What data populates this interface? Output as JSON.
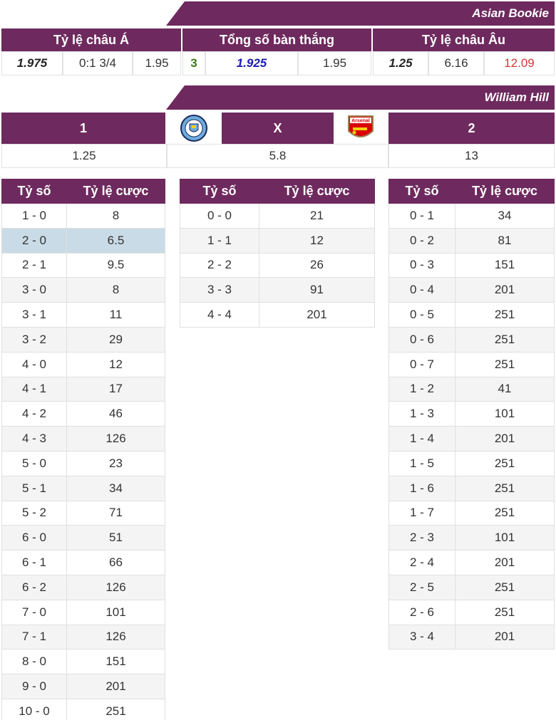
{
  "asian_bookie": {
    "banner": "Asian Bookie",
    "headers": [
      "Tỷ lệ châu Á",
      "Tổng số bàn thắng",
      "Tỷ lệ châu Âu"
    ],
    "asian": [
      "1.975",
      "0:1 3/4",
      "1.95"
    ],
    "total": [
      "3",
      "1.925",
      "1.95"
    ],
    "europe": [
      "1.25",
      "6.16",
      "12.09"
    ]
  },
  "william_hill": {
    "banner": "William Hill",
    "home_label": "1",
    "draw_label": "X",
    "away_label": "2",
    "home_odd": "1.25",
    "draw_odd": "5.8",
    "away_odd": "13",
    "home_logo": "man-city-crest-icon",
    "away_logo": "arsenal-crest-icon",
    "away_logo_text": "Arsenal"
  },
  "score_headers": {
    "score": "Tỷ số",
    "odds": "Tỷ lệ cược"
  },
  "home_scores": [
    [
      "1 - 0",
      "8"
    ],
    [
      "2 - 0",
      "6.5"
    ],
    [
      "2 - 1",
      "9.5"
    ],
    [
      "3 - 0",
      "8"
    ],
    [
      "3 - 1",
      "11"
    ],
    [
      "3 - 2",
      "29"
    ],
    [
      "4 - 0",
      "12"
    ],
    [
      "4 - 1",
      "17"
    ],
    [
      "4 - 2",
      "46"
    ],
    [
      "4 - 3",
      "126"
    ],
    [
      "5 - 0",
      "23"
    ],
    [
      "5 - 1",
      "34"
    ],
    [
      "5 - 2",
      "71"
    ],
    [
      "6 - 0",
      "51"
    ],
    [
      "6 - 1",
      "66"
    ],
    [
      "6 - 2",
      "126"
    ],
    [
      "7 - 0",
      "101"
    ],
    [
      "7 - 1",
      "126"
    ],
    [
      "8 - 0",
      "151"
    ],
    [
      "9 - 0",
      "201"
    ],
    [
      "10 - 0",
      "251"
    ]
  ],
  "draw_scores": [
    [
      "0 - 0",
      "21"
    ],
    [
      "1 - 1",
      "12"
    ],
    [
      "2 - 2",
      "26"
    ],
    [
      "3 - 3",
      "91"
    ],
    [
      "4 - 4",
      "201"
    ]
  ],
  "away_scores": [
    [
      "0 - 1",
      "34"
    ],
    [
      "0 - 2",
      "81"
    ],
    [
      "0 - 3",
      "151"
    ],
    [
      "0 - 4",
      "201"
    ],
    [
      "0 - 5",
      "251"
    ],
    [
      "0 - 6",
      "251"
    ],
    [
      "0 - 7",
      "251"
    ],
    [
      "1 - 2",
      "41"
    ],
    [
      "1 - 3",
      "101"
    ],
    [
      "1 - 4",
      "201"
    ],
    [
      "1 - 5",
      "251"
    ],
    [
      "1 - 6",
      "251"
    ],
    [
      "1 - 7",
      "251"
    ],
    [
      "2 - 3",
      "101"
    ],
    [
      "2 - 4",
      "201"
    ],
    [
      "2 - 5",
      "251"
    ],
    [
      "2 - 6",
      "251"
    ],
    [
      "3 - 4",
      "201"
    ]
  ],
  "colors": {
    "accent": "#6e2a5e",
    "highlight": "#c9dbe6",
    "red": "#d23a3a",
    "green": "#3d7a1a",
    "blue": "#1c1cb0"
  }
}
